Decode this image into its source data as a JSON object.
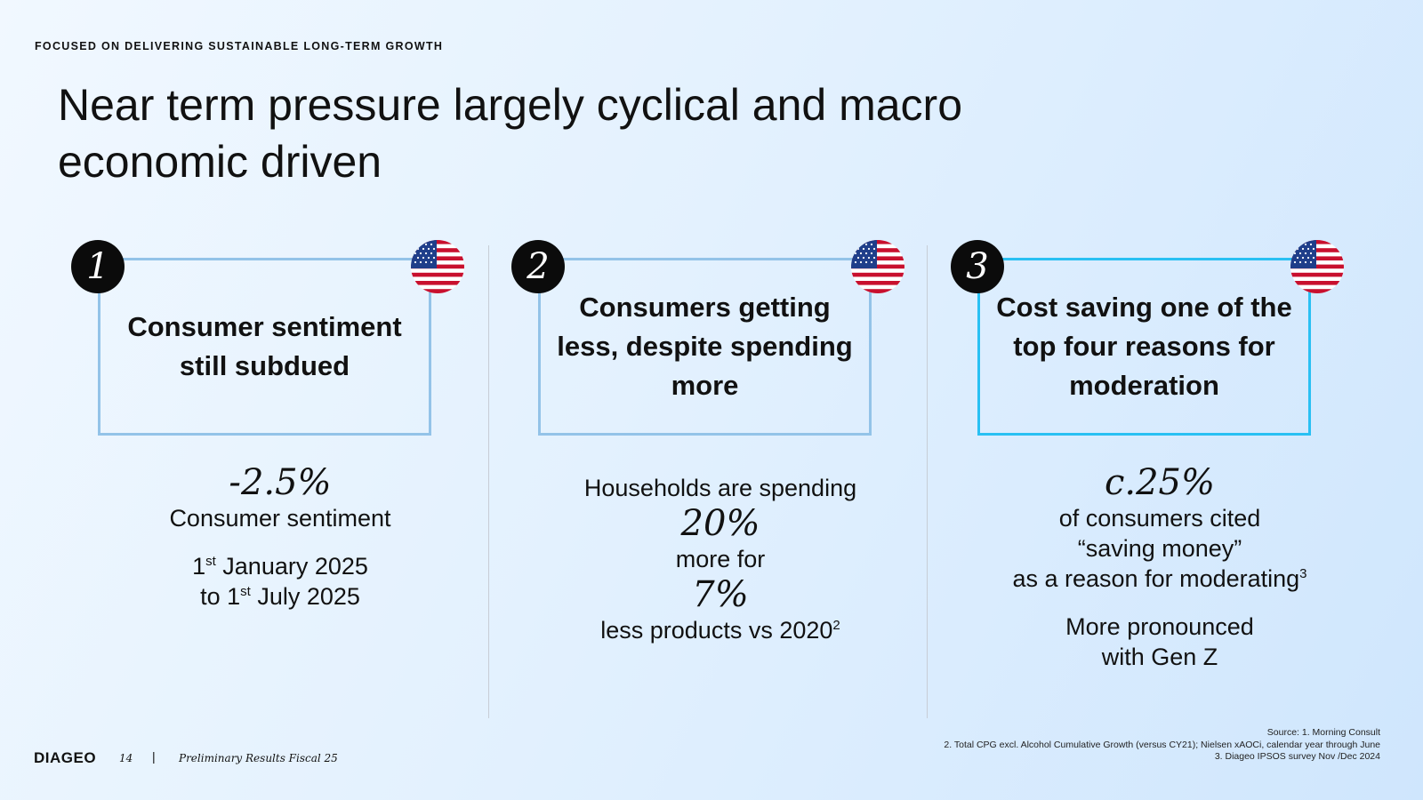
{
  "header": {
    "kicker": "FOCUSED ON DELIVERING SUSTAINABLE LONG-TERM GROWTH",
    "title": "Near term pressure largely cyclical and macro economic driven"
  },
  "colors": {
    "box_border": "#93c3e8",
    "box_border_highlight": "#29c0f3",
    "badge_bg": "#0b0b0b"
  },
  "columns": [
    {
      "number": "1",
      "flag_icon": "us-flag-icon",
      "title": "Consumer sentiment still subdued",
      "stat": "-2.5%",
      "stat_label": "Consumer sentiment",
      "date_1_pre": "1",
      "date_1_sup": "st",
      "date_1_post": " January 2025",
      "date_2_pre": "to 1",
      "date_2_sup": "st",
      "date_2_post": " July 2025"
    },
    {
      "number": "2",
      "flag_icon": "us-flag-icon",
      "title": "Consumers getting less, despite spending more",
      "line_1": "Households are spending",
      "stat_1": "20%",
      "line_2": "more for",
      "stat_2": "7%",
      "line_3": "less products  vs 2020",
      "line_3_sup": "2"
    },
    {
      "number": "3",
      "flag_icon": "us-flag-icon",
      "highlight": true,
      "title": "Cost saving one of the top four reasons for moderation",
      "stat": "c.25%",
      "line_1": "of consumers cited",
      "line_2": "“saving money”",
      "line_3": "as a reason for moderating",
      "line_3_sup": "3",
      "note": "More pronounced with Gen Z"
    }
  ],
  "footer": {
    "logo": "DIAGEO",
    "page": "14",
    "separator": "|",
    "doc_title": "Preliminary Results Fiscal 25",
    "sources": [
      "Source: 1. Morning Consult",
      "2. Total CPG excl. Alcohol Cumulative Growth (versus CY21); Nielsen xAOCi, calendar year through June",
      "3. Diageo IPSOS survey Nov /Dec 2024"
    ]
  }
}
